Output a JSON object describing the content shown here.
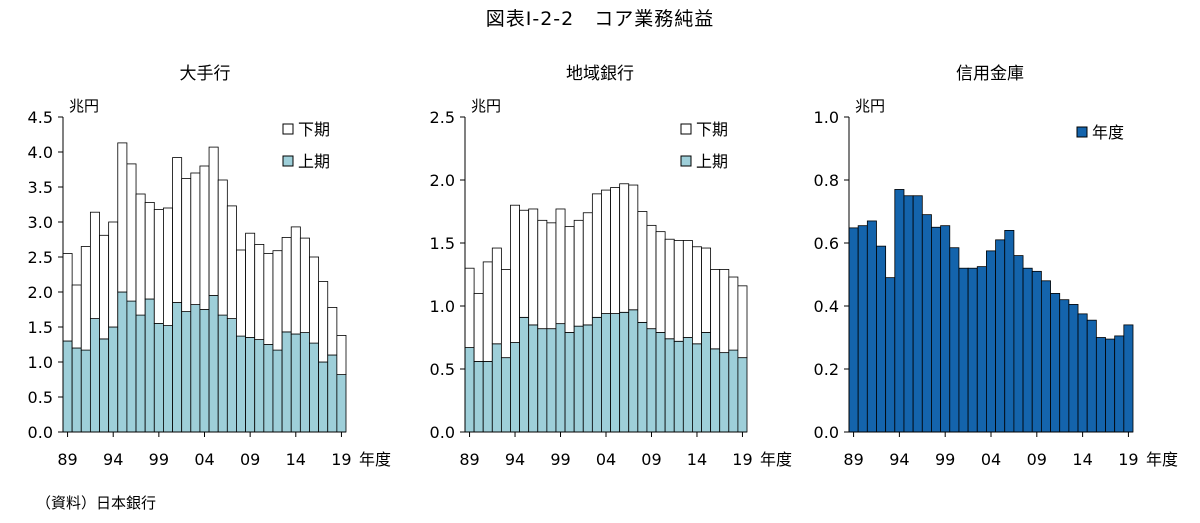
{
  "title": "図表Ⅰ-2-2　コア業務純益",
  "source": "（資料）日本銀行",
  "colors": {
    "lower": "#9ecfd9",
    "upper": "#ffffff",
    "annual": "#1464ac",
    "stroke": "#000000"
  },
  "chart_data": [
    {
      "type": "bar",
      "stacked": true,
      "title": "大手行",
      "unit_label": "兆円",
      "xlabel": "年度",
      "ylim": [
        0,
        4.5
      ],
      "yticks": [
        "4.5",
        "4.0",
        "3.5",
        "3.0",
        "2.5",
        "2.0",
        "1.5",
        "1.0",
        "0.5",
        "0.0"
      ],
      "xtick_labels": [
        "89",
        "94",
        "99",
        "04",
        "09",
        "14",
        "19"
      ],
      "legend": [
        "下期",
        "上期"
      ],
      "categories": [
        1989,
        1990,
        1991,
        1992,
        1993,
        1994,
        1995,
        1996,
        1997,
        1998,
        1999,
        2000,
        2001,
        2002,
        2003,
        2004,
        2005,
        2006,
        2007,
        2008,
        2009,
        2010,
        2011,
        2012,
        2013,
        2014,
        2015,
        2016,
        2017,
        2018,
        2019
      ],
      "series": [
        {
          "name": "上期",
          "values": [
            1.3,
            1.2,
            1.17,
            1.62,
            1.33,
            1.5,
            2.0,
            1.87,
            1.67,
            1.9,
            1.55,
            1.52,
            1.85,
            1.72,
            1.82,
            1.75,
            1.95,
            1.67,
            1.62,
            1.37,
            1.35,
            1.32,
            1.25,
            1.17,
            1.43,
            1.4,
            1.42,
            1.27,
            1.0,
            1.1,
            0.82
          ]
        },
        {
          "name": "下期",
          "values": [
            1.25,
            0.9,
            1.48,
            1.52,
            1.48,
            1.5,
            2.13,
            1.96,
            1.73,
            1.38,
            1.63,
            1.68,
            2.07,
            1.9,
            1.88,
            2.05,
            2.12,
            1.93,
            1.61,
            1.23,
            1.49,
            1.36,
            1.3,
            1.42,
            1.35,
            1.53,
            1.35,
            1.23,
            1.15,
            0.68,
            0.56
          ]
        }
      ]
    },
    {
      "type": "bar",
      "stacked": true,
      "title": "地域銀行",
      "unit_label": "兆円",
      "xlabel": "年度",
      "ylim": [
        0,
        2.5
      ],
      "yticks": [
        "2.5",
        "2.0",
        "1.5",
        "1.0",
        "0.5",
        "0.0"
      ],
      "xtick_labels": [
        "89",
        "94",
        "99",
        "04",
        "09",
        "14",
        "19"
      ],
      "legend": [
        "下期",
        "上期"
      ],
      "categories": [
        1989,
        1990,
        1991,
        1992,
        1993,
        1994,
        1995,
        1996,
        1997,
        1998,
        1999,
        2000,
        2001,
        2002,
        2003,
        2004,
        2005,
        2006,
        2007,
        2008,
        2009,
        2010,
        2011,
        2012,
        2013,
        2014,
        2015,
        2016,
        2017,
        2018,
        2019
      ],
      "series": [
        {
          "name": "上期",
          "values": [
            0.67,
            0.56,
            0.56,
            0.7,
            0.59,
            0.71,
            0.91,
            0.85,
            0.82,
            0.82,
            0.86,
            0.79,
            0.84,
            0.85,
            0.91,
            0.94,
            0.94,
            0.95,
            0.97,
            0.87,
            0.82,
            0.79,
            0.74,
            0.72,
            0.75,
            0.7,
            0.79,
            0.66,
            0.63,
            0.65,
            0.59
          ]
        },
        {
          "name": "下期",
          "values": [
            0.63,
            0.54,
            0.79,
            0.76,
            0.7,
            1.09,
            0.85,
            0.92,
            0.86,
            0.84,
            0.91,
            0.84,
            0.84,
            0.89,
            0.98,
            0.98,
            1.0,
            1.02,
            0.99,
            0.88,
            0.82,
            0.8,
            0.79,
            0.8,
            0.77,
            0.77,
            0.67,
            0.63,
            0.66,
            0.58,
            0.57
          ]
        }
      ]
    },
    {
      "type": "bar",
      "title": "信用金庫",
      "unit_label": "兆円",
      "xlabel": "年度",
      "ylim": [
        0,
        1.0
      ],
      "yticks": [
        "1.0",
        "0.8",
        "0.6",
        "0.4",
        "0.2",
        "0.0"
      ],
      "xtick_labels": [
        "89",
        "94",
        "99",
        "04",
        "09",
        "14",
        "19"
      ],
      "legend": [
        "年度"
      ],
      "categories": [
        1989,
        1990,
        1991,
        1992,
        1993,
        1994,
        1995,
        1996,
        1997,
        1998,
        1999,
        2000,
        2001,
        2002,
        2003,
        2004,
        2005,
        2006,
        2007,
        2008,
        2009,
        2010,
        2011,
        2012,
        2013,
        2014,
        2015,
        2016,
        2017,
        2018,
        2019
      ],
      "series": [
        {
          "name": "年度",
          "values": [
            0.648,
            0.655,
            0.67,
            0.59,
            0.49,
            0.77,
            0.75,
            0.75,
            0.69,
            0.65,
            0.655,
            0.585,
            0.52,
            0.52,
            0.525,
            0.575,
            0.61,
            0.64,
            0.56,
            0.52,
            0.51,
            0.48,
            0.44,
            0.42,
            0.405,
            0.375,
            0.355,
            0.3,
            0.295,
            0.305,
            0.34
          ]
        }
      ]
    }
  ]
}
